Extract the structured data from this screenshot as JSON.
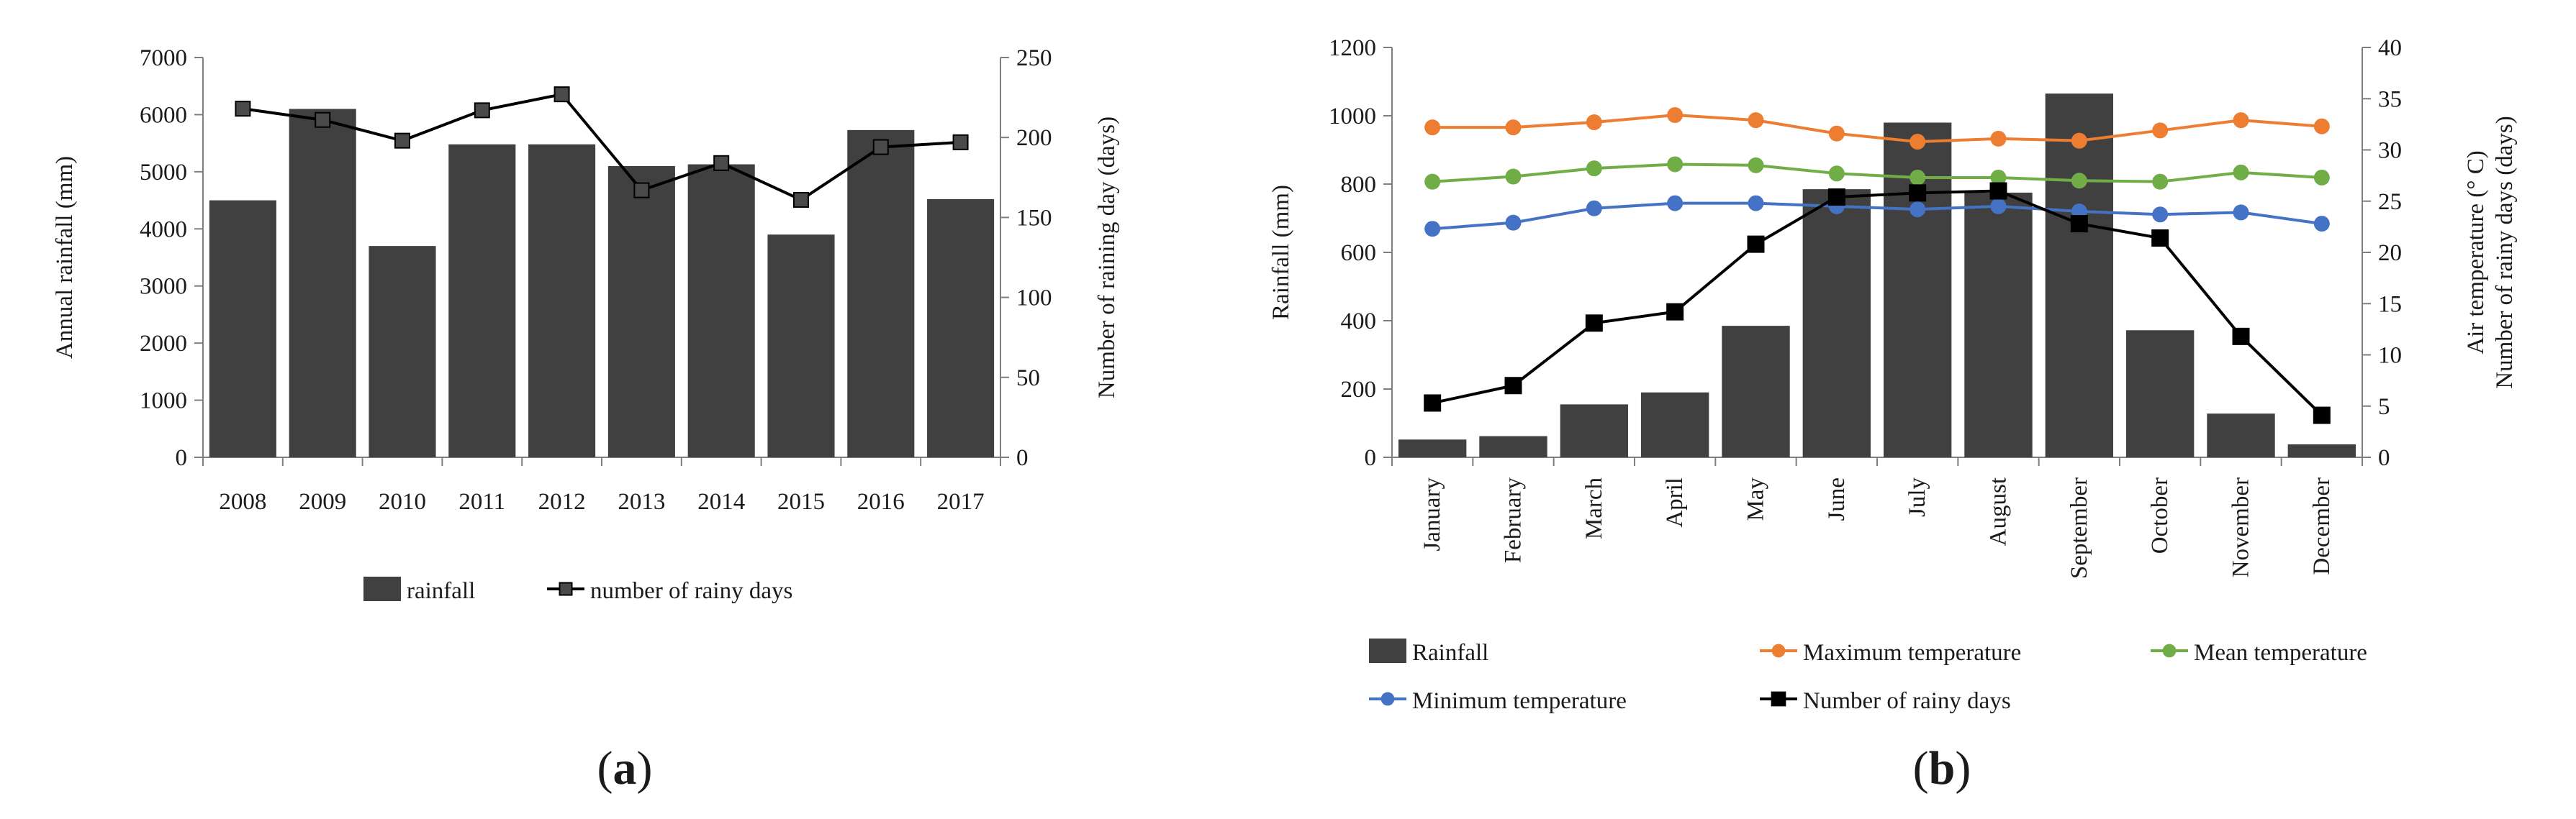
{
  "chart_data": [
    {
      "type": "bar",
      "panel_label": "(a)",
      "categories": [
        "2008",
        "2009",
        "2010",
        "2011",
        "2012",
        "2013",
        "2014",
        "2015",
        "2016",
        "2017"
      ],
      "ylabel": "Annual rainfall (mm)",
      "y2label": "Number of raining day (days)",
      "ylim": [
        0,
        7000
      ],
      "y2lim": [
        0,
        250
      ],
      "yticks": [
        "0",
        "1000",
        "2000",
        "3000",
        "4000",
        "5000",
        "6000",
        "7000"
      ],
      "y2ticks": [
        "0",
        "50",
        "100",
        "150",
        "200",
        "250"
      ],
      "legend_position": "bottom",
      "series": [
        {
          "name": "rainfall",
          "type": "bar",
          "axis": "left",
          "color": "#404040",
          "values": [
            4500,
            6100,
            3700,
            5480,
            5480,
            5100,
            5130,
            3900,
            5730,
            4520
          ]
        },
        {
          "name": "number of rainy days",
          "type": "line",
          "axis": "right",
          "color": "#000000",
          "marker": "square",
          "marker_color": "#4a4a4a",
          "values": [
            218,
            211,
            198,
            217,
            227,
            167,
            184,
            161,
            194,
            197
          ]
        }
      ]
    },
    {
      "type": "bar",
      "panel_label": "(b)",
      "categories": [
        "January",
        "February",
        "March",
        "April",
        "May",
        "June",
        "July",
        "August",
        "September",
        "October",
        "November",
        "December"
      ],
      "ylabel": "Rainfall (mm)",
      "y2label_line1": "Air temperature (° C)",
      "y2label_line2": "Number of rainy days (days)",
      "ylim": [
        0,
        1200
      ],
      "y2lim": [
        0,
        40
      ],
      "yticks": [
        "0",
        "200",
        "400",
        "600",
        "800",
        "1000",
        "1200"
      ],
      "y2ticks": [
        "0",
        "5",
        "10",
        "15",
        "20",
        "25",
        "30",
        "35",
        "40"
      ],
      "legend_position": "bottom",
      "series": [
        {
          "name": "Rainfall",
          "type": "bar",
          "axis": "left",
          "color": "#404040",
          "values": [
            52,
            62,
            155,
            190,
            385,
            785,
            980,
            775,
            1065,
            372,
            128,
            38
          ]
        },
        {
          "name": "Maximum temperature",
          "type": "line",
          "axis": "right",
          "color": "#ed7d31",
          "marker": "circle",
          "values": [
            32.2,
            32.2,
            32.7,
            33.4,
            32.9,
            31.6,
            30.8,
            31.1,
            30.9,
            31.9,
            32.9,
            32.3
          ]
        },
        {
          "name": "Mean temperature",
          "type": "line",
          "axis": "right",
          "color": "#70ad47",
          "marker": "circle",
          "values": [
            26.9,
            27.4,
            28.2,
            28.6,
            28.5,
            27.7,
            27.3,
            27.3,
            27.0,
            26.9,
            27.8,
            27.3
          ]
        },
        {
          "name": "Minimum temperature",
          "type": "line",
          "axis": "right",
          "color": "#4472c4",
          "marker": "circle",
          "values": [
            22.3,
            22.9,
            24.3,
            24.8,
            24.8,
            24.5,
            24.2,
            24.5,
            24.0,
            23.7,
            23.9,
            22.8
          ]
        },
        {
          "name": "Number of rainy days",
          "type": "line",
          "axis": "right",
          "color": "#000000",
          "marker": "square",
          "values": [
            5.3,
            7.0,
            13.1,
            14.2,
            20.8,
            25.4,
            25.8,
            26.0,
            22.8,
            21.4,
            11.8,
            4.1
          ]
        }
      ]
    }
  ]
}
